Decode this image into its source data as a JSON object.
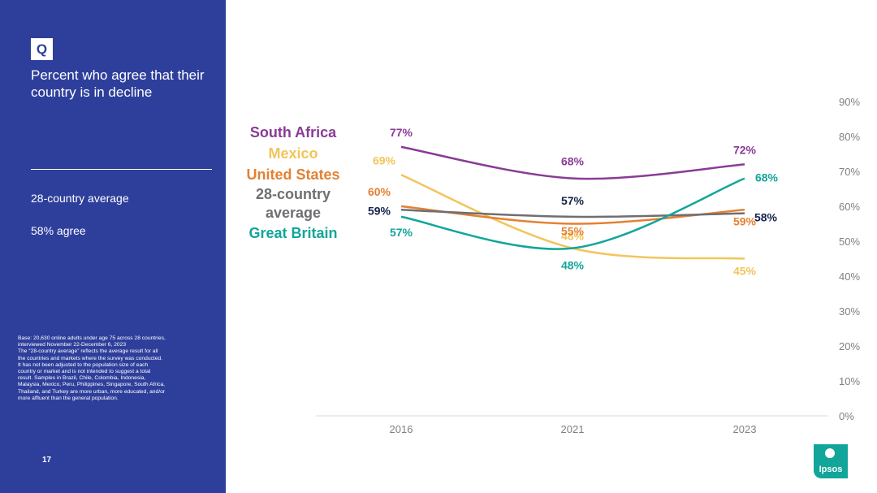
{
  "slide": {
    "q_badge": "Q",
    "title": "Percent who agree that their country is in decline",
    "avg_label": "28-country average",
    "avg_value": "58% agree",
    "note_lines": [
      "Base: 20,630 online adults under age 75 across 28 countries,",
      "interviewed November 22-December 6, 2023",
      "The “28-country average” reflects the average result for all",
      "the countries and markets where the survey was conducted.",
      "It has not been adjusted to the population size of each",
      "country or market and is not intended to suggest a total",
      "result. Samples in Brazil, Chile, Colombia, Indonesia,",
      "Malaysia, Mexico, Peru, Philippines, Singapore, South Africa,",
      "Thailand, and Turkey are more urban, more educated, and/or",
      "more affluent than the general population."
    ],
    "page_number": "17",
    "logo_text": "Ipsos"
  },
  "colors": {
    "sidebar": "#2e3f9b",
    "south_africa": "#8a3b96",
    "mexico": "#f2c55c",
    "united_states": "#e48132",
    "average": "#6e6e73",
    "average_label": "#14234b",
    "great_britain": "#12a59a",
    "axis_text": "#808080",
    "logo": "#12a59a"
  },
  "chart_data": {
    "type": "line",
    "title": "Percent who agree that their country is in decline",
    "categories": [
      "2016",
      "2021",
      "2023"
    ],
    "yticks": [
      "0%",
      "10%",
      "20%",
      "30%",
      "40%",
      "50%",
      "60%",
      "70%",
      "80%",
      "90%"
    ],
    "ylim": [
      0,
      90
    ],
    "grid": false,
    "y_axis_side": "right",
    "legend_position": "left",
    "series": [
      {
        "key": "mexico",
        "name": "Mexico",
        "values": [
          69,
          48,
          45
        ],
        "labels": [
          "69%",
          "48%",
          "45%"
        ]
      },
      {
        "key": "united_states",
        "name": "United States",
        "values": [
          60,
          55,
          59
        ],
        "labels": [
          "60%",
          "55%",
          "59%"
        ]
      },
      {
        "key": "average",
        "name": "28-country average",
        "legend_lines": [
          "28-country",
          "average"
        ],
        "values": [
          59,
          57,
          58
        ],
        "labels": [
          "59%",
          "57%",
          "58%"
        ]
      },
      {
        "key": "great_britain",
        "name": "Great Britain",
        "values": [
          57,
          48,
          68
        ],
        "labels": [
          "57%",
          "48%",
          "68%"
        ]
      },
      {
        "key": "south_africa",
        "name": "South Africa",
        "values": [
          77,
          68,
          72
        ],
        "labels": [
          "77%",
          "68%",
          "72%"
        ]
      }
    ]
  }
}
